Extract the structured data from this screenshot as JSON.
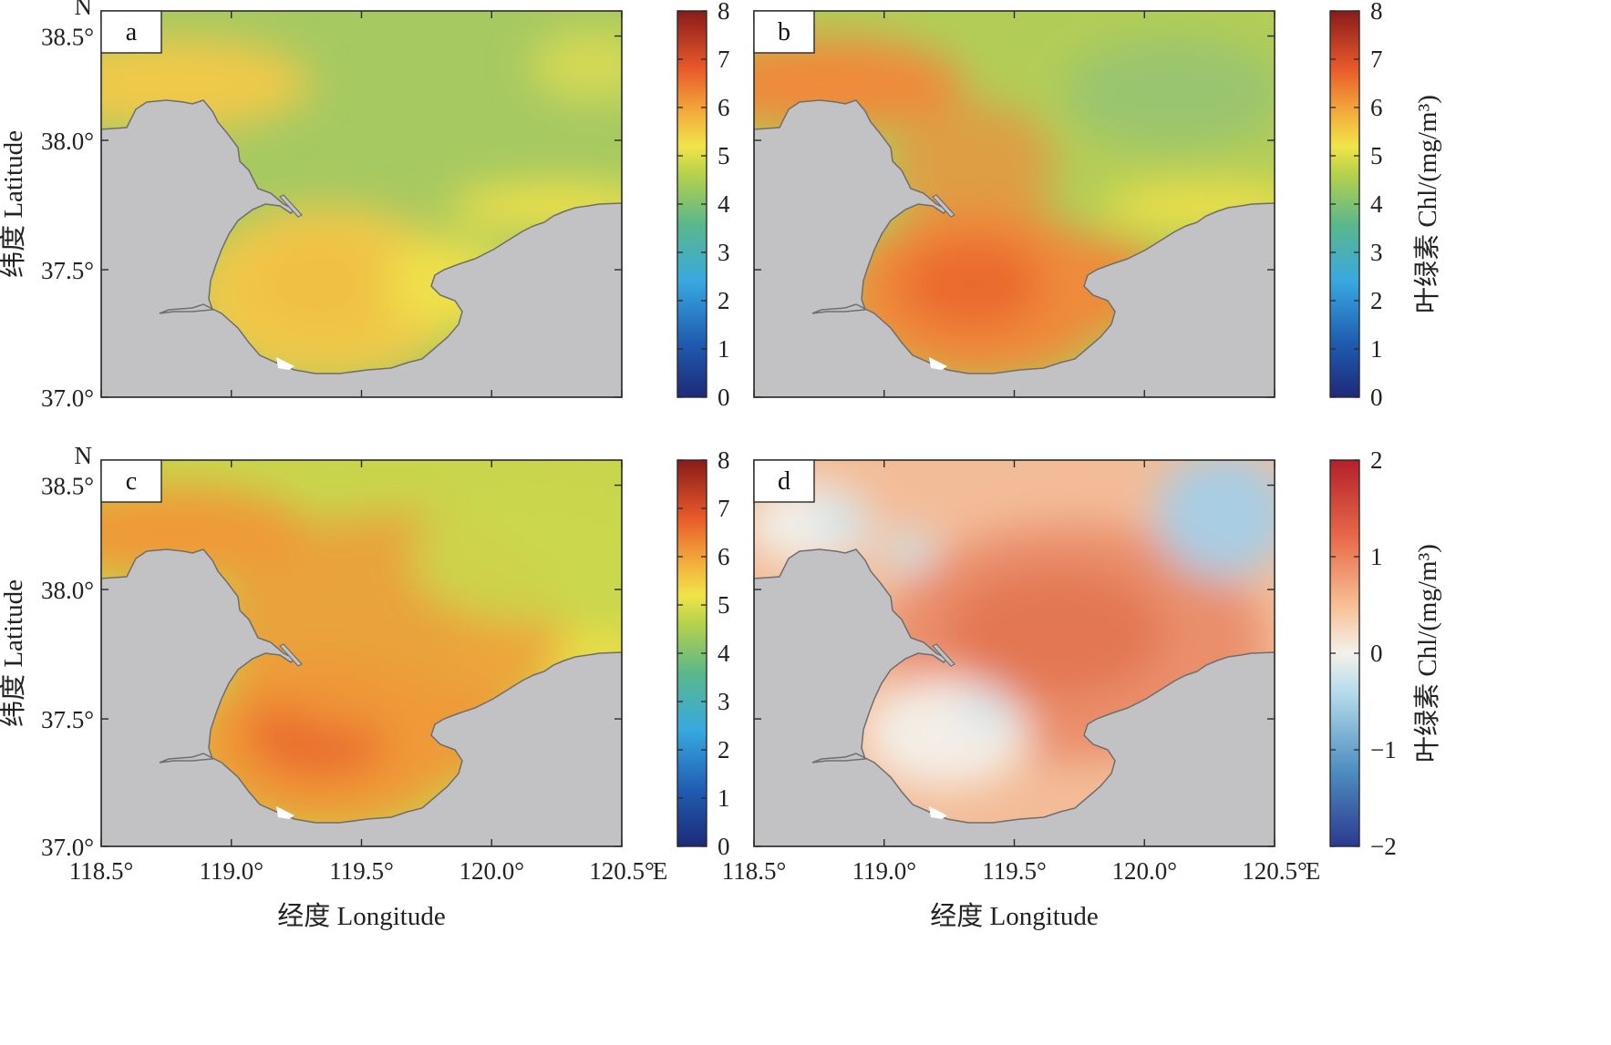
{
  "colors": {
    "land": "#c2c2c4",
    "coast": "#6e6e6e",
    "frame": "#2a2a2a"
  },
  "axes": {
    "x_ticks": [
      "118.5°",
      "119.0°",
      "119.5°",
      "120.0°",
      "120.5°"
    ],
    "x_suffix": "E",
    "y_ticks": [
      "38.5°",
      "38.0°",
      "37.5°",
      "37.0°"
    ],
    "y_prefix": "N",
    "xlabel": "经度 Longitude",
    "ylabel": "纬度 Latitude"
  },
  "panels": [
    {
      "label": "a",
      "scheme": "abs",
      "level": 0.35
    },
    {
      "label": "b",
      "scheme": "abs",
      "level": 0.55
    },
    {
      "label": "c",
      "scheme": "abs",
      "level": 0.75
    },
    {
      "label": "d",
      "scheme": "diff",
      "level": 0.6
    }
  ],
  "colorbars": [
    {
      "ticks": [
        "8",
        "7",
        "6",
        "5",
        "4",
        "3",
        "2",
        "1",
        "0"
      ],
      "title": "",
      "scheme": "abs"
    },
    {
      "ticks": [
        "8",
        "7",
        "6",
        "5",
        "4",
        "3",
        "2",
        "1",
        "0"
      ],
      "title": "叶绿素 Chl/(mg/m³)",
      "scheme": "abs"
    },
    {
      "ticks": [
        "8",
        "7",
        "6",
        "5",
        "4",
        "3",
        "2",
        "1",
        "0"
      ],
      "title": "",
      "scheme": "abs"
    },
    {
      "ticks": [
        "2",
        "1",
        "0",
        "−1",
        "−2"
      ],
      "title": "叶绿素 Chl/(mg/m³)",
      "scheme": "diff"
    }
  ]
}
